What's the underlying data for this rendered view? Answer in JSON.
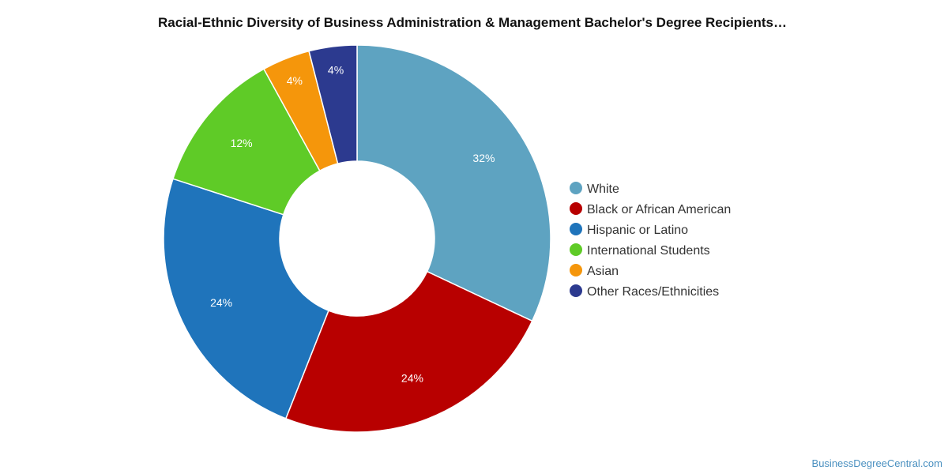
{
  "chart_data": {
    "type": "pie",
    "variant": "donut",
    "title": "Racial-Ethnic Diversity of Business Administration & Management Bachelor's Degree Recipients…",
    "categories": [
      "White",
      "Black or African American",
      "Hispanic or Latino",
      "International Students",
      "Asian",
      "Other Races/Ethnicities"
    ],
    "values": [
      32,
      24,
      24,
      12,
      4,
      4
    ],
    "value_labels": [
      "32%",
      "24%",
      "24%",
      "12%",
      "4%",
      "4%"
    ],
    "colors": [
      "#5ea3c1",
      "#b80000",
      "#1f74bb",
      "#5fcb27",
      "#f5960b",
      "#2c3a8f"
    ],
    "legend_position": "right"
  },
  "footer": {
    "credit": "BusinessDegreeCentral.com"
  }
}
